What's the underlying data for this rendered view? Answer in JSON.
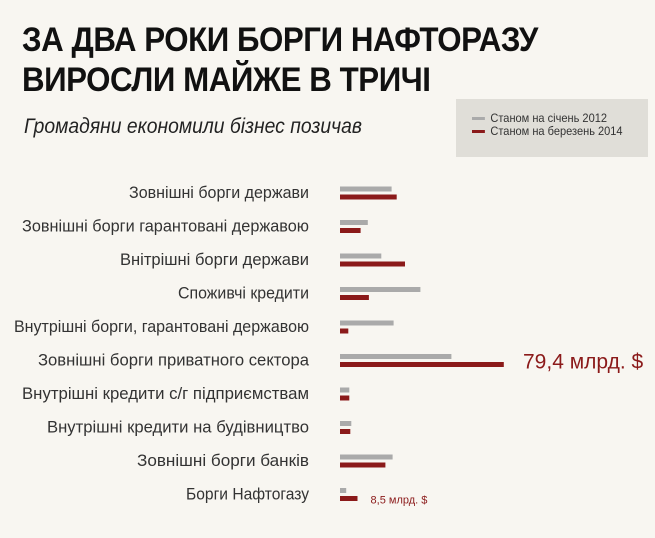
{
  "title_lines": [
    "ЗА ДВА РОКИ БОРГИ НАФТОРАЗУ",
    "ВИРОСЛИ МАЙЖЕ В ТРИЧІ"
  ],
  "subtitle": "Громадяни економили бізнес позичав",
  "colors": {
    "gray": "#aaaaaa",
    "red": "#8b1a1a",
    "background": "#f8f6f1",
    "legend_bg": "#e0ded8"
  },
  "chart_data": {
    "type": "bar",
    "orientation": "horizontal",
    "title": "ЗА ДВА РОКИ БОРГИ НАФТОРАЗУ ВИРОСЛИ МАЙЖЕ В ТРИЧІ",
    "subtitle": "Громадяни економили бізнес позичав",
    "legend_position": "top-right",
    "grid": false,
    "categories": [
      "Зовнішні борги держави",
      "Зовнішні борги гарантовані державою",
      "Внітрішні борги держави",
      "Споживчі кредити",
      "Внутрішні борги, гарантовані державою",
      "Зовнішні борги приватного сектора",
      "Внутрішні кредити с/г підприємствам",
      "Внутрішні кредити на будівництво",
      "Зовнішні борги банків",
      "Борги Нафтогазу"
    ],
    "series": [
      {
        "name": "Станом на січень 2012",
        "color": "#aaaaaa",
        "values": [
          25.0,
          13.5,
          20.0,
          39.0,
          26.0,
          54.0,
          4.5,
          5.5,
          25.5,
          3.0
        ]
      },
      {
        "name": "Станом на березень 2014",
        "color": "#8b1a1a",
        "values": [
          27.5,
          10.0,
          31.5,
          14.0,
          4.0,
          79.4,
          4.5,
          5.0,
          22.0,
          8.5
        ]
      }
    ],
    "xlim": [
      0,
      80
    ],
    "annotations": [
      {
        "category_index": 5,
        "series_index": 1,
        "text": "79,4 млрд. $"
      },
      {
        "category_index": 9,
        "series_index": 1,
        "text": "8,5 млрд. $"
      }
    ]
  }
}
